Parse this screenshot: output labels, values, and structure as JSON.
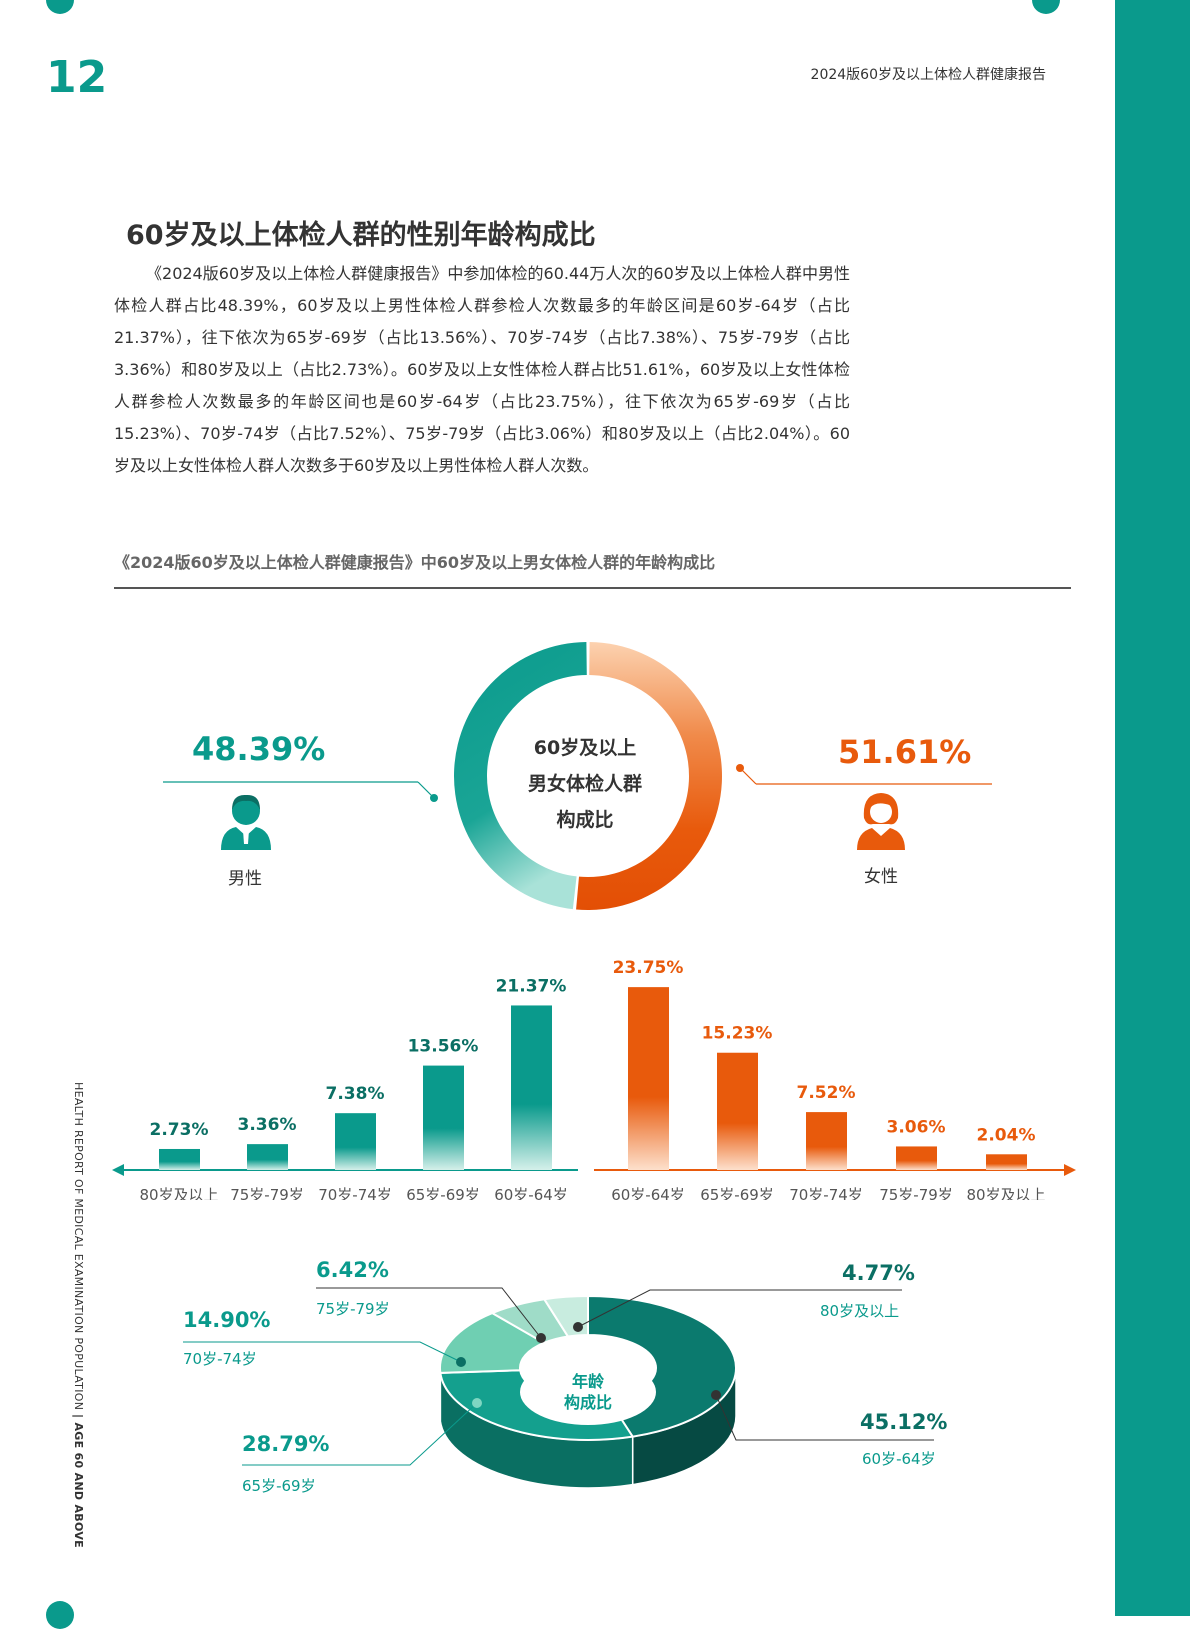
{
  "page_number": "12",
  "header_title": "2024版60岁及以上体检人群健康报告",
  "section_title": "60岁及以上体检人群的性别年龄构成比",
  "body_text": "《2024版60岁及以上体检人群健康报告》中参加体检的60.44万人次的60岁及以上体检人群中男性体检人群占比48.39%，60岁及以上男性体检人群参检人次数最多的年龄区间是60岁-64岁（占比21.37%），往下依次为65岁-69岁（占比13.56%）、70岁-74岁（占比7.38%）、75岁-79岁（占比3.36%）和80岁及以上（占比2.73%）。60岁及以上女性体检人群占比51.61%，60岁及以上女性体检人群参检人次数最多的年龄区间也是60岁-64岁（占比23.75%），往下依次为65岁-69岁（占比15.23%）、70岁-74岁（占比7.52%）、75岁-79岁（占比3.06%）和80岁及以上（占比2.04%）。60岁及以上女性体检人群人次数多于60岁及以上男性体检人群人次数。",
  "figure_caption": "《2024版60岁及以上体检人群健康报告》中60岁及以上男女体检人群的年龄构成比",
  "side_text": {
    "normal": "HEALTH REPORT OF MEDICAL EXAMINATION POPULATION",
    "bold": "| AGE 60 AND ABOVE"
  },
  "colors": {
    "teal": "#0a9a8c",
    "teal_dark": "#0b6f64",
    "orange": "#e85a0c",
    "orange_light": "#fbc9a2"
  },
  "icons": {
    "male": "male-user-icon",
    "female": "female-user-icon"
  },
  "chart_data": [
    {
      "type": "pie",
      "variant": "donut",
      "center_label": [
        "60岁及以上",
        "男女体检人群",
        "构成比"
      ],
      "slices": [
        {
          "label": "男性",
          "value": 48.39,
          "display": "48.39%",
          "color": "#0a9a8c"
        },
        {
          "label": "女性",
          "value": 51.61,
          "display": "51.61%",
          "color": "#e85a0c"
        }
      ]
    },
    {
      "type": "bar",
      "series": [
        {
          "name": "男性",
          "color": "#0a9a8c",
          "categories": [
            "80岁及以上",
            "75岁-79岁",
            "70岁-74岁",
            "65岁-69岁",
            "60岁-64岁"
          ],
          "values": [
            2.73,
            3.36,
            7.38,
            13.56,
            21.37
          ],
          "labels": [
            "2.73%",
            "3.36%",
            "7.38%",
            "13.56%",
            "21.37%"
          ]
        },
        {
          "name": "女性",
          "color": "#e85a0c",
          "categories": [
            "60岁-64岁",
            "65岁-69岁",
            "70岁-74岁",
            "75岁-79岁",
            "80岁及以上"
          ],
          "values": [
            23.75,
            15.23,
            7.52,
            3.06,
            2.04
          ],
          "labels": [
            "23.75%",
            "15.23%",
            "7.52%",
            "3.06%",
            "2.04%"
          ]
        }
      ]
    },
    {
      "type": "pie",
      "variant": "3d-donut",
      "center_label": [
        "年龄",
        "构成比"
      ],
      "slices": [
        {
          "label": "60岁-64岁",
          "value": 45.12,
          "display": "45.12%",
          "color": "#0b7a6e"
        },
        {
          "label": "65岁-69岁",
          "value": 28.79,
          "display": "28.79%",
          "color": "#14a08e"
        },
        {
          "label": "70岁-74岁",
          "value": 14.9,
          "display": "14.90%",
          "color": "#6fcfb2"
        },
        {
          "label": "75岁-79岁",
          "value": 6.42,
          "display": "6.42%",
          "color": "#9fdcc8"
        },
        {
          "label": "80岁及以上",
          "value": 4.77,
          "display": "4.77%",
          "color": "#c8ecdf"
        }
      ]
    }
  ]
}
